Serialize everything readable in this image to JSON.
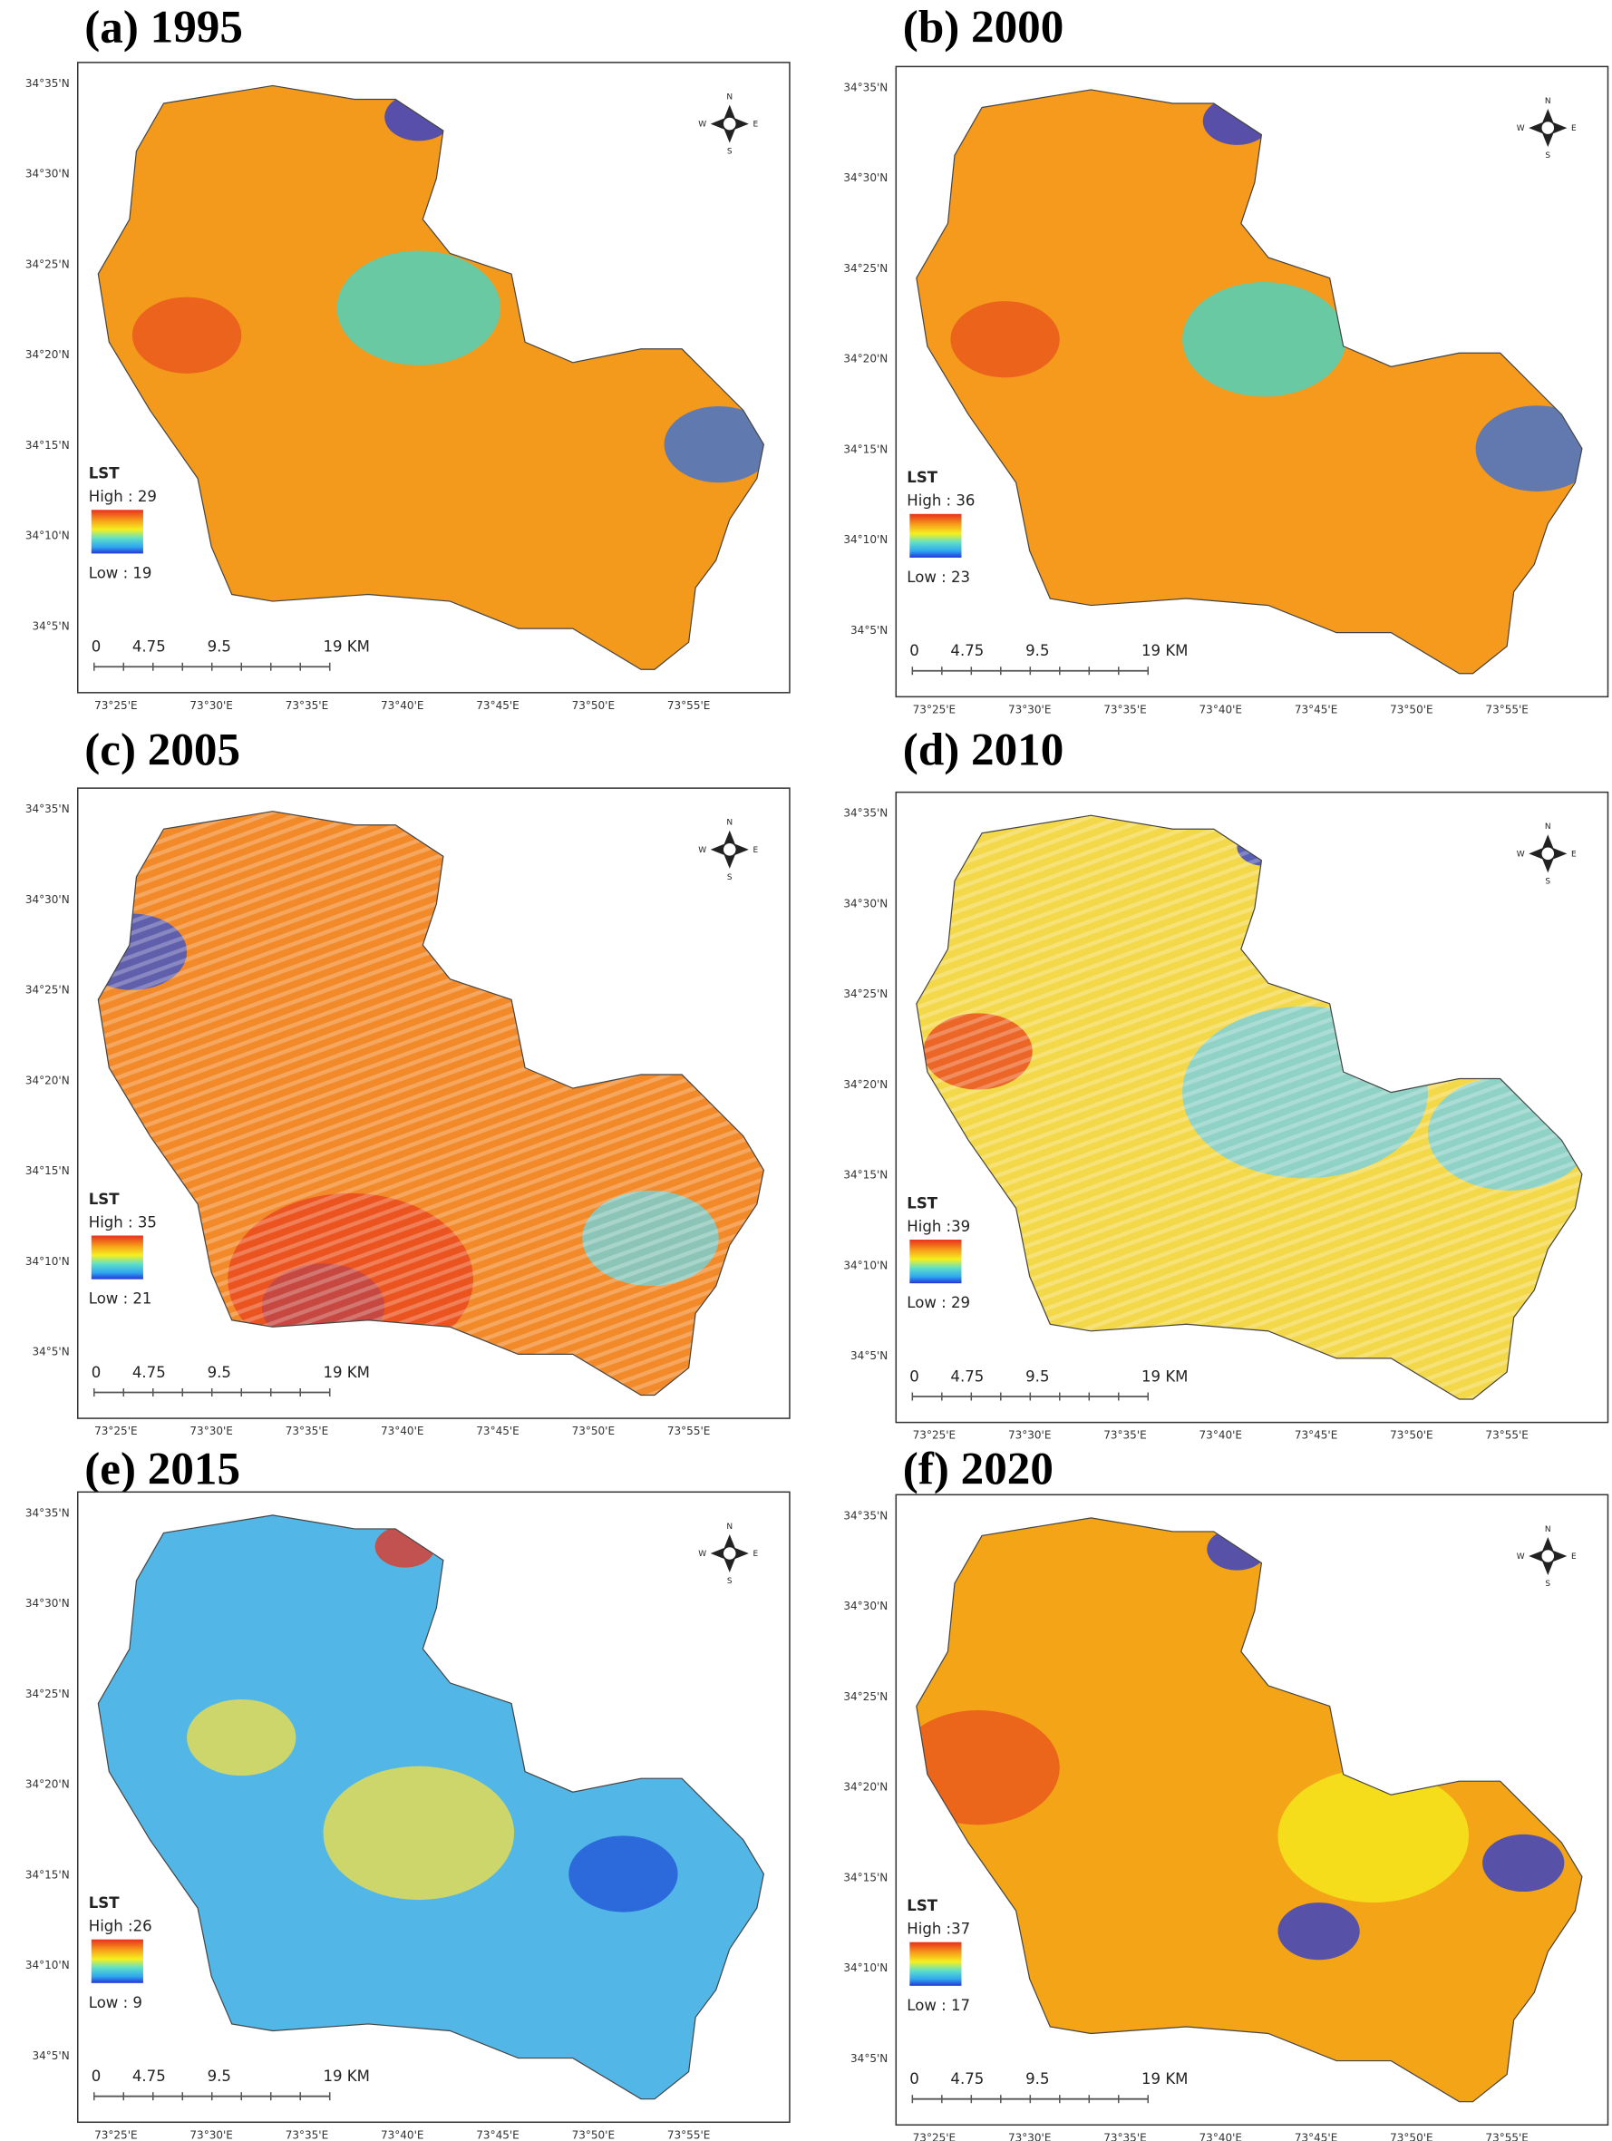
{
  "panels": [
    {
      "title": "(a) 1995",
      "high": "High : 29",
      "low": "Low : 19"
    },
    {
      "title": "(b) 2000",
      "high": "High : 36",
      "low": "Low : 23"
    },
    {
      "title": "(c) 2005",
      "high": "High : 35",
      "low": "Low : 21"
    },
    {
      "title": "(d) 2010",
      "high": "High :39",
      "low": "Low : 29"
    },
    {
      "title": "(e) 2015",
      "high": "High :26",
      "low": "Low : 9"
    },
    {
      "title": "(f) 2020",
      "high": "High :37",
      "low": "Low : 17"
    }
  ],
  "legend_title": "LST",
  "scale_labels": [
    "0",
    "4.75",
    "9.5",
    "19 KM"
  ],
  "lat_labels": [
    "34°35'N",
    "34°30'N",
    "34°25'N",
    "34°20'N",
    "34°15'N",
    "34°10'N",
    "34°5'N"
  ],
  "lon_labels": [
    "73°25'E",
    "73°30'E",
    "73°35'E",
    "73°40'E",
    "73°45'E",
    "73°50'E",
    "73°55'E"
  ],
  "compass": [
    "N",
    "W",
    "E",
    "S"
  ]
}
